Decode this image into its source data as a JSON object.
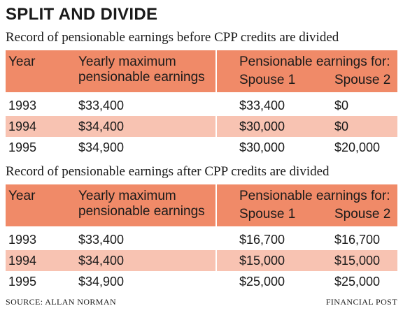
{
  "title": "SPLIT AND DIVIDE",
  "tables": [
    {
      "subtitle": "Record of pensionable earnings before CPP credits are divided",
      "header": {
        "year": "Year",
        "max_line1": "Yearly maximum",
        "max_line2": "pensionable earnings",
        "group": "Pensionable earnings for:",
        "spouse1": "Spouse 1",
        "spouse2": "Spouse 2"
      },
      "rows": [
        {
          "year": "1993",
          "max": "$33,400",
          "s1": "$33,400",
          "s2": "$0"
        },
        {
          "year": "1994",
          "max": "$34,400",
          "s1": "$30,000",
          "s2": "$0"
        },
        {
          "year": "1995",
          "max": "$34,900",
          "s1": "$30,000",
          "s2": "$20,000"
        }
      ]
    },
    {
      "subtitle": "Record of pensionable earnings after CPP credits are divided",
      "header": {
        "year": "Year",
        "max_line1": "Yearly maximum",
        "max_line2": "pensionable earnings",
        "group": "Pensionable earnings for:",
        "spouse1": "Spouse 1",
        "spouse2": "Spouse 2"
      },
      "rows": [
        {
          "year": "1993",
          "max": "$33,400",
          "s1": "$16,700",
          "s2": "$16,700"
        },
        {
          "year": "1994",
          "max": "$34,400",
          "s1": "$15,000",
          "s2": "$15,000"
        },
        {
          "year": "1995",
          "max": "$34,900",
          "s1": "$25,000",
          "s2": "$25,000"
        }
      ]
    }
  ],
  "source": "SOURCE: ALLAN NORMAN",
  "credit": "FINANCIAL POST",
  "colors": {
    "header": "#f08a68",
    "shaded_row": "#f8c3b2"
  }
}
